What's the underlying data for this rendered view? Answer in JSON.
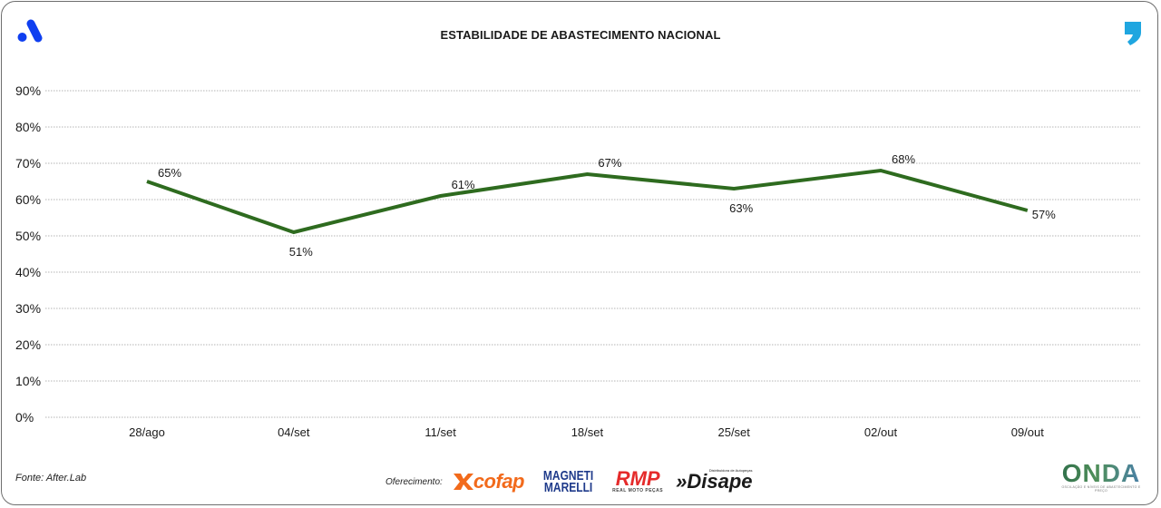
{
  "header": {
    "title": "ESTABILIDADE DE ABASTECIMENTO NACIONAL",
    "left_logo": "brand-a-logo",
    "right_logo": "quote-comma-logo",
    "colors": {
      "left_logo": "#0f3ff0",
      "right_logo": "#1fa6e0"
    }
  },
  "chart_data": {
    "type": "line",
    "title": "ESTABILIDADE DE ABASTECIMENTO NACIONAL",
    "xlabel": "",
    "ylabel": "",
    "categories": [
      "28/ago",
      "04/set",
      "11/set",
      "18/set",
      "25/set",
      "02/out",
      "09/out"
    ],
    "series": [
      {
        "name": "Estabilidade de abastecimento",
        "values": [
          65,
          51,
          61,
          67,
          63,
          68,
          57
        ],
        "labels": [
          "65%",
          "51%",
          "61%",
          "67%",
          "63%",
          "68%",
          "57%"
        ],
        "label_position": [
          "above",
          "below",
          "above",
          "above",
          "below",
          "above",
          "right"
        ],
        "color": "#2e6b1f"
      }
    ],
    "ylim": [
      0,
      90
    ],
    "yticks": [
      0,
      10,
      20,
      30,
      40,
      50,
      60,
      70,
      80,
      90
    ],
    "ytick_labels": [
      "0%",
      "10%",
      "20%",
      "30%",
      "40%",
      "50%",
      "60%",
      "70%",
      "80%",
      "90%"
    ],
    "grid": true,
    "grid_style": "dotted",
    "legend": "none"
  },
  "footer": {
    "source": "Fonte: After.Lab",
    "sponsor_label": "Oferecimento:",
    "sponsors": [
      {
        "name": "cofap",
        "text": "cofap"
      },
      {
        "name": "magneti-marelli",
        "line1": "MAGNETI",
        "line2": "MARELLI"
      },
      {
        "name": "rmp",
        "text": "RMP",
        "sub": "REAL MOTO PEÇAS"
      },
      {
        "name": "disape",
        "text": "»Disape",
        "sub": "Distribuidora de Autopeças"
      }
    ],
    "brand": {
      "name": "ONDA",
      "tagline": "OSCILAÇÃO E NÍVEIS DE ABASTECIMENTO E PREÇO"
    }
  }
}
